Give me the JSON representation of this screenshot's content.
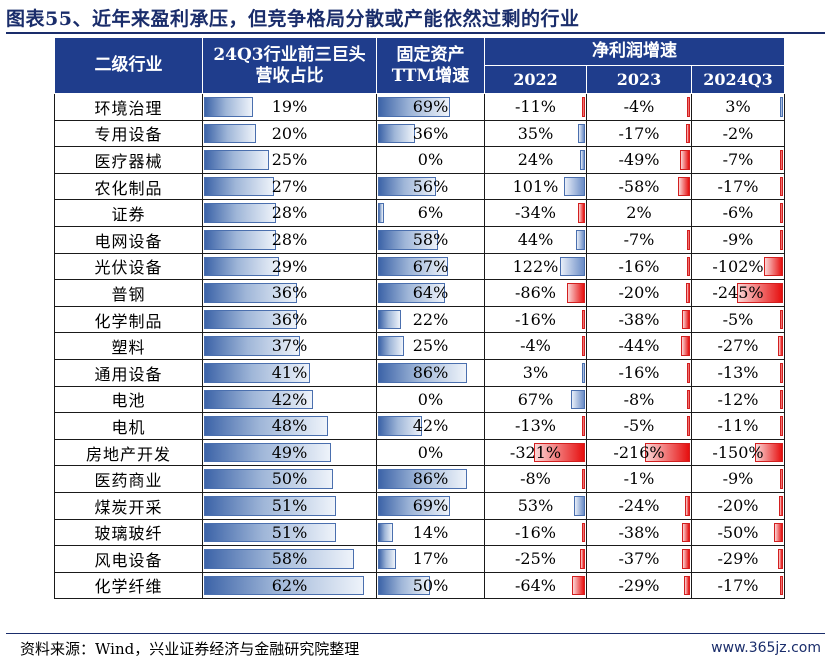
{
  "title": "图表55、近年来盈利承压，但竞争格局分散或产能依然过剩的行业",
  "headers": {
    "industry": "二级行业",
    "top3": "24Q3行业前三巨头营收占比",
    "fixed_assets": "固定资产TTM增速",
    "net_profit": "净利润增速",
    "years": [
      "2022",
      "2023",
      "2024Q3"
    ]
  },
  "rows": [
    {
      "industry": "环境治理",
      "top3": "19%",
      "fa": "69%",
      "np": [
        "-11%",
        "-4%",
        "3%"
      ]
    },
    {
      "industry": "专用设备",
      "top3": "20%",
      "fa": "36%",
      "np": [
        "35%",
        "-17%",
        "-2%"
      ]
    },
    {
      "industry": "医疗器械",
      "top3": "25%",
      "fa": "0%",
      "np": [
        "24%",
        "-49%",
        "-7%"
      ]
    },
    {
      "industry": "农化制品",
      "top3": "27%",
      "fa": "56%",
      "np": [
        "101%",
        "-58%",
        "-17%"
      ]
    },
    {
      "industry": "证券",
      "top3": "28%",
      "fa": "6%",
      "np": [
        "-34%",
        "2%",
        "-6%"
      ]
    },
    {
      "industry": "电网设备",
      "top3": "28%",
      "fa": "58%",
      "np": [
        "44%",
        "-7%",
        "-9%"
      ]
    },
    {
      "industry": "光伏设备",
      "top3": "29%",
      "fa": "67%",
      "np": [
        "122%",
        "-16%",
        "-102%"
      ]
    },
    {
      "industry": "普钢",
      "top3": "36%",
      "fa": "64%",
      "np": [
        "-86%",
        "-20%",
        "-245%"
      ]
    },
    {
      "industry": "化学制品",
      "top3": "36%",
      "fa": "22%",
      "np": [
        "-16%",
        "-38%",
        "-5%"
      ]
    },
    {
      "industry": "塑料",
      "top3": "37%",
      "fa": "25%",
      "np": [
        "-4%",
        "-44%",
        "-27%"
      ]
    },
    {
      "industry": "通用设备",
      "top3": "41%",
      "fa": "86%",
      "np": [
        "3%",
        "-16%",
        "-13%"
      ]
    },
    {
      "industry": "电池",
      "top3": "42%",
      "fa": "0%",
      "np": [
        "67%",
        "-8%",
        "-12%"
      ]
    },
    {
      "industry": "电机",
      "top3": "48%",
      "fa": "42%",
      "np": [
        "-13%",
        "-5%",
        "-11%"
      ]
    },
    {
      "industry": "房地产开发",
      "top3": "49%",
      "fa": "0%",
      "np": [
        "-321%",
        "-216%",
        "-150%"
      ]
    },
    {
      "industry": "医药商业",
      "top3": "50%",
      "fa": "86%",
      "np": [
        "-8%",
        "-1%",
        "-9%"
      ]
    },
    {
      "industry": "煤炭开采",
      "top3": "51%",
      "fa": "69%",
      "np": [
        "53%",
        "-24%",
        "-20%"
      ]
    },
    {
      "industry": "玻璃玻纤",
      "top3": "51%",
      "fa": "14%",
      "np": [
        "-16%",
        "-38%",
        "-50%"
      ]
    },
    {
      "industry": "风电设备",
      "top3": "58%",
      "fa": "17%",
      "np": [
        "-25%",
        "-37%",
        "-29%"
      ]
    },
    {
      "industry": "化学纤维",
      "top3": "62%",
      "fa": "50%",
      "np": [
        "-64%",
        "-29%",
        "-17%"
      ]
    }
  ],
  "source": "资料来源：Wind，兴业证券经济与金融研究院整理",
  "watermark": "www.365jz.com"
}
